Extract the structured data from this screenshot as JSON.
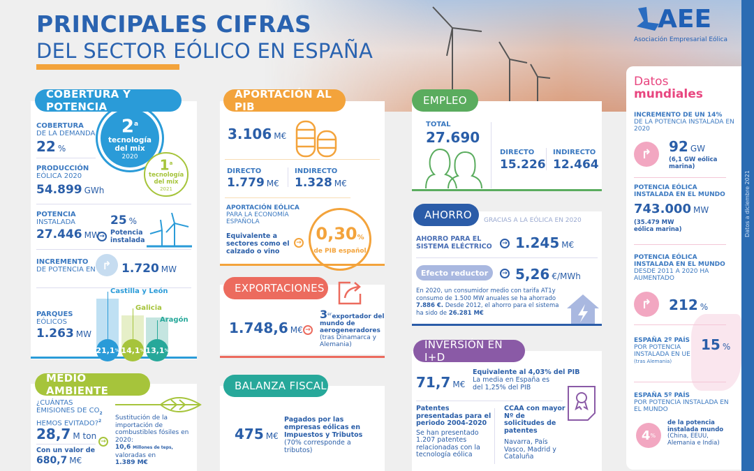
{
  "header": {
    "title_line1": "PRINCIPALES CIFRAS",
    "title_line2": "DEL SECTOR EÓLICO EN ESPAÑA",
    "logo_text": "AEE",
    "logo_subtitle": "Asociación Empresarial Eólica"
  },
  "colors": {
    "blue": "#2a63b0",
    "cobertura": "#2a9bd8",
    "green_lime": "#a6c43b",
    "orange": "#f3a33b",
    "coral": "#ec6b5e",
    "teal": "#27a89a",
    "empleo": "#5aac5e",
    "ahorro": "#2b5ca8",
    "purple": "#8a5aa6",
    "pink": "#e8457f"
  },
  "cobertura": {
    "title": "COBERTURA Y POTENCIA",
    "demanda_label_bold": "COBERTURA",
    "demanda_label": "DE LA DEMANDA",
    "demanda_value": "22",
    "demanda_unit": "%",
    "rank2020_num": "2",
    "rank2020_sup": "a",
    "rank2020_text": "tecnología del mix",
    "rank2020_year": "2020",
    "rank2021_num": "1",
    "rank2021_sup": "a",
    "rank2021_text": "tecnología del mix",
    "rank2021_year": "2021",
    "produccion_label_bold": "PRODUCCIÓN",
    "produccion_label": "EÓLICA 2020",
    "produccion_value": "54.899",
    "produccion_unit": "GWh",
    "potencia_label_bold": "POTENCIA",
    "potencia_label": "INSTALADA",
    "potencia_value": "27.446",
    "potencia_unit": "MW",
    "potencia_pct": "25",
    "potencia_pct_unit": "%",
    "potencia_pct_label": "Potencia instalada",
    "incremento_label_bold": "INCREMENTO",
    "incremento_label": "DE POTENCIA EN 2020",
    "incremento_value": "1.720",
    "incremento_unit": "MW",
    "parques_label_bold": "PARQUES",
    "parques_label": "EÓLICOS",
    "parques_value": "1.263",
    "parques_unit": "MW",
    "regions": [
      {
        "name": "Castilla y León",
        "pct": "21,1",
        "value": 21.1,
        "color": "#2a9bd8",
        "bar": "#bfe0f3"
      },
      {
        "name": "Galicia",
        "pct": "14,1",
        "value": 14.1,
        "color": "#a6c43b",
        "bar": "#e6efc8"
      },
      {
        "name": "Aragón",
        "pct": "13,1",
        "value": 13.1,
        "color": "#27a89a",
        "bar": "#c4e5e0"
      }
    ],
    "pct_sign": "%"
  },
  "medio": {
    "title": "MEDIO AMBIENTE",
    "q_bold": "¿CUÁNTAS EMISIONES DE CO",
    "q_sub": "2",
    "q_rest": "HEMOS EVITADO?",
    "q_note": "2",
    "value": "28,7",
    "unit": "M ton",
    "valor_label": "Con un valor de",
    "valor": "680,7",
    "valor_unit": "M€",
    "sust_text": "Sustitución de la importación de combustibles fósiles en 2020:",
    "sust_value": "10,6",
    "sust_unit": "Millones de teps,",
    "sust_valoradas": "valoradas en",
    "sust_money": "1.389 M€"
  },
  "pib": {
    "title": "APORTACIÓN AL PIB",
    "total": "3.106",
    "unit": "M€",
    "directo_label": "DIRECTO",
    "directo": "1.779",
    "indirecto_label": "INDIRECTO",
    "indirecto": "1.328",
    "aport_bold": "APORTACIÓN EÓLICA",
    "aport_rest": "PARA LA ECONOMÍA ESPAÑOLA",
    "equiv": "Equivalente a sectores como el calzado o vino",
    "pct": "0,30",
    "pct_sign": "%",
    "pct_label": "de PIB español"
  },
  "export": {
    "title": "EXPORTACIONES",
    "value": "1.748,6",
    "unit": "M€",
    "rank": "3",
    "rank_sup": "er",
    "rank_text": "exportador del mundo de aerogeneradores",
    "rank_note": "(tras Dinamarca y Alemania)"
  },
  "fiscal": {
    "title": "BALANZA FISCAL",
    "value": "475",
    "unit": "M€",
    "text_bold": "Pagados por las empresas eólicas en Impuestos y Tributos",
    "text_note": "(70% corresponde a tributos)"
  },
  "empleo": {
    "title": "EMPLEO",
    "total_label": "TOTAL",
    "total": "27.690",
    "directo_label": "DIRECTO",
    "directo": "15.226",
    "indirecto_label": "INDIRECTO",
    "indirecto": "12.464"
  },
  "ahorro": {
    "title": "AHORRO",
    "subtitle": "GRACIAS A LA EÓLICA EN 2020",
    "sistema_label": "AHORRO PARA EL SISTEMA ELÉCTRICO",
    "sistema_value": "1.245",
    "sistema_unit": "M€",
    "efecto_label": "Efecto reductor",
    "efecto_value": "5,26",
    "efecto_unit": "€/MWh",
    "text1": "En 2020, un consumidor medio con tarifa AT1y consumo de 1.500 MW anuales se ha ahorrado ",
    "text_b1": "7.886 €.",
    "text2": " Desde 2012, el ahorro para el sistema ha sido de ",
    "text_b2": "26.281 M€"
  },
  "id": {
    "title": "INVERSIÓN EN I+D",
    "value": "71,7",
    "unit": "M€",
    "equiv_bold": "Equivalente al 4,03% del PIB",
    "equiv_rest": "La media en España es del 1,25% del PIB",
    "patentes_bold": "Patentes presentadas para el periodo 2004-2020",
    "patentes_text": "Se han presentado 1.207 patentes relacionadas con la tecnología eólica",
    "ccaa_bold": "CCAA con mayor Nº de solicitudes de patentes",
    "ccaa_text": "Navarra, País Vasco, Madrid y Cataluña"
  },
  "mundial": {
    "title1": "Datos",
    "title2": "mundiales",
    "inc_bold": "INCREMENTO DE UN 14%",
    "inc_rest": "DE LA POTENCIA INSTALADA EN 2020",
    "inc_value": "92",
    "inc_unit": "GW",
    "inc_note": "(6,1 GW eólica marina)",
    "pot_bold": "POTENCIA EÓLICA INSTALADA EN EL MUNDO",
    "pot_value": "743.000",
    "pot_unit": "MW",
    "pot_note": "(35.479 MW eólica marina)",
    "aum_bold": "POTENCIA EÓLICA INSTALADA EN EL MUNDO",
    "aum_rest": "DESDE 2011 A 2020 HA AUMENTADO",
    "aum_value": "212",
    "aum_unit": "%",
    "ue_bold": "ESPAÑA 2º PAÍS",
    "ue_rest": "POR POTENCIA INSTALADA EN UE",
    "ue_note": "(tras Alemania)",
    "ue_value": "15",
    "ue_unit": "%",
    "mundo_bold": "ESPAÑA 5º PAÍS",
    "mundo_rest": "POR POTENCIA INSTALADA EN EL MUNDO",
    "mundo_value": "4",
    "mundo_unit": "%",
    "mundo_text_bold": "de la potencia instalada mundo",
    "mundo_text": "(China, EEUU, Alemania e India)"
  },
  "side_note": "Datos a diciembre 2021"
}
